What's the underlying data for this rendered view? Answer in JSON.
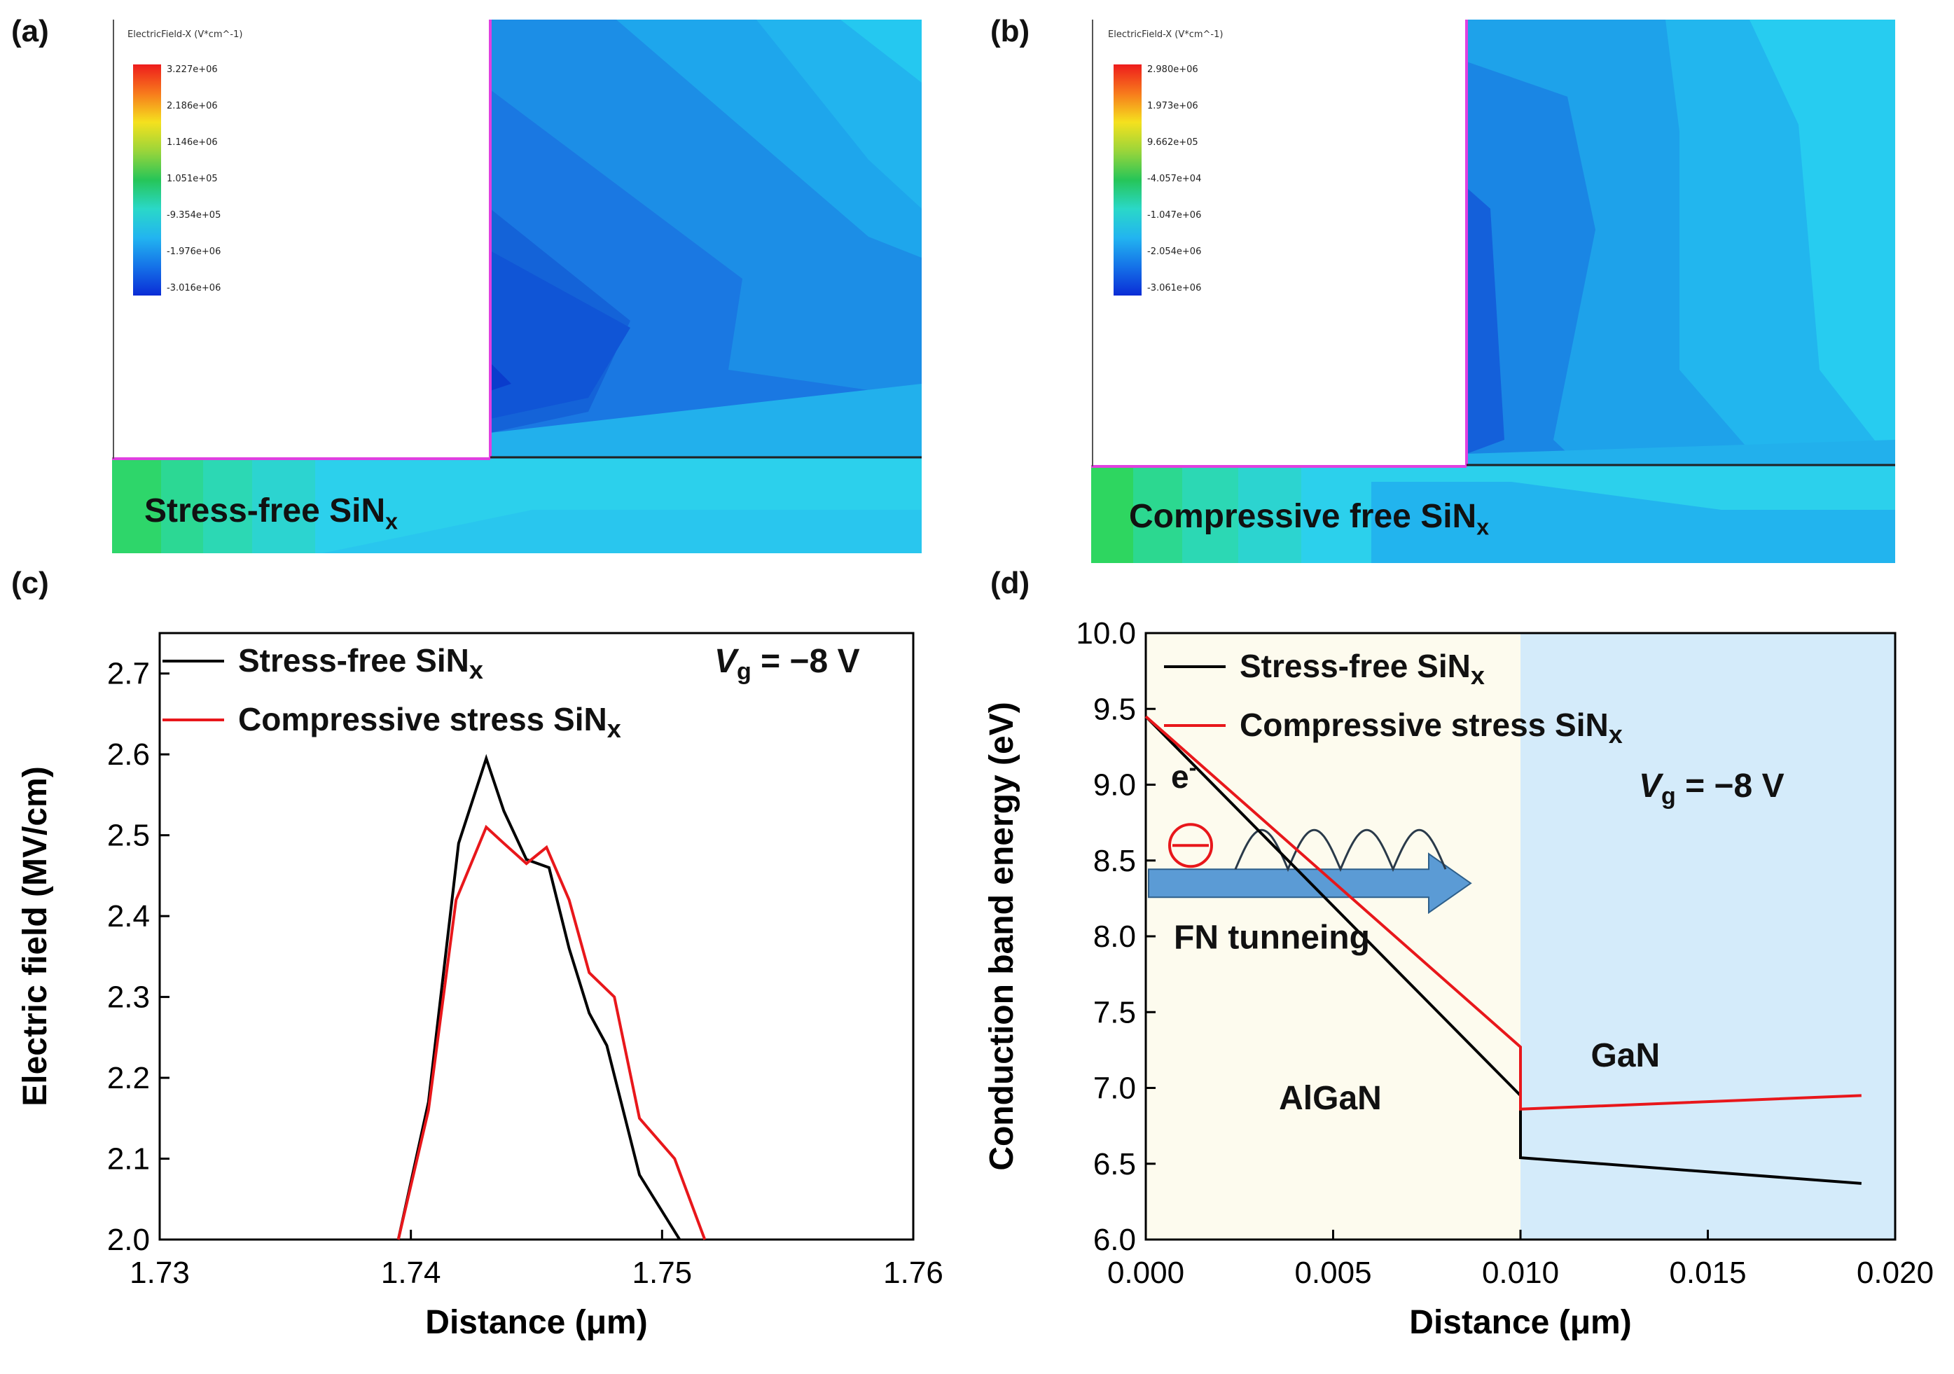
{
  "panels": {
    "a": {
      "label": "(a)",
      "legend_title": "ElectricField-X (V*cm^-1)",
      "legend_ticks": [
        "3.227e+06",
        "2.186e+06",
        "1.146e+06",
        "1.051e+05",
        "-9.354e+05",
        "-1.976e+06",
        "-3.016e+06"
      ],
      "region_label": "Stress-free SiN",
      "region_sub": "x"
    },
    "b": {
      "label": "(b)",
      "legend_title": "ElectricField-X (V*cm^-1)",
      "legend_ticks": [
        "2.980e+06",
        "1.973e+06",
        "9.662e+05",
        "-4.057e+04",
        "-1.047e+06",
        "-2.054e+06",
        "-3.061e+06"
      ],
      "region_label": "Compressive free SiN",
      "region_sub": "x"
    },
    "c": {
      "label": "(c)"
    },
    "d": {
      "label": "(d)"
    }
  },
  "colors": {
    "black_series": "#000000",
    "red_series": "#e8171b",
    "algan_bg": "#fdfbee",
    "gan_bg": "#d4ebfa",
    "arrow": "#5b9bd5"
  },
  "chart_data": [
    {
      "type": "line",
      "panel": "c",
      "xlabel": "Distance (μm)",
      "ylabel": "Electric field (MV/cm)",
      "xlim": [
        1.73,
        1.76
      ],
      "ylim": [
        2.0,
        2.75
      ],
      "xticks": [
        "1.73",
        "1.74",
        "1.75",
        "1.76"
      ],
      "yticks": [
        "2.0",
        "2.1",
        "2.2",
        "2.3",
        "2.4",
        "2.5",
        "2.6",
        "2.7"
      ],
      "annotation": {
        "v": "V",
        "sub": "g",
        "rest": " = −8 V"
      },
      "series": [
        {
          "name": "Stress-free SiN",
          "sub": "x",
          "color": "#000000",
          "x": [
            1.7395,
            1.7407,
            1.7419,
            1.743,
            1.7437,
            1.7446,
            1.7455,
            1.7463,
            1.7471,
            1.7478,
            1.7491,
            1.7507
          ],
          "y": [
            2.0,
            2.17,
            2.49,
            2.595,
            2.53,
            2.47,
            2.46,
            2.36,
            2.28,
            2.24,
            2.08,
            2.0
          ]
        },
        {
          "name": "Compressive stress SiN",
          "sub": "x",
          "color": "#e8171b",
          "x": [
            1.7395,
            1.7407,
            1.7418,
            1.743,
            1.7437,
            1.7446,
            1.7454,
            1.7463,
            1.7471,
            1.7481,
            1.7491,
            1.7505,
            1.7517
          ],
          "y": [
            2.0,
            2.16,
            2.42,
            2.51,
            2.49,
            2.465,
            2.485,
            2.42,
            2.33,
            2.3,
            2.15,
            2.1,
            2.0
          ]
        }
      ]
    },
    {
      "type": "line",
      "panel": "d",
      "xlabel": "Distance (μm)",
      "ylabel": "Conduction band energy (eV)",
      "xlim": [
        0.0,
        0.02
      ],
      "ylim": [
        6.0,
        10.0
      ],
      "xticks": [
        "0.000",
        "0.005",
        "0.010",
        "0.015",
        "0.020"
      ],
      "yticks": [
        "6.0",
        "6.5",
        "7.0",
        "7.5",
        "8.0",
        "8.5",
        "9.0",
        "9.5",
        "10.0"
      ],
      "annotation": {
        "v": "V",
        "sub": "g",
        "rest": " = −8 V"
      },
      "labels": {
        "electron": "e",
        "electron_sup": "-",
        "fn": "FN tunneing",
        "algan": "AlGaN",
        "gan": "GaN"
      },
      "series": [
        {
          "name": "Stress-free SiN",
          "sub": "x",
          "color": "#000000",
          "x": [
            0.0,
            0.01,
            0.01,
            0.0191
          ],
          "y": [
            9.45,
            6.95,
            6.54,
            6.37
          ]
        },
        {
          "name": "Compressive stress SiN",
          "sub": "x",
          "color": "#e8171b",
          "x": [
            0.0,
            0.01,
            0.01,
            0.0191
          ],
          "y": [
            9.45,
            7.27,
            6.86,
            6.95
          ]
        }
      ]
    }
  ]
}
